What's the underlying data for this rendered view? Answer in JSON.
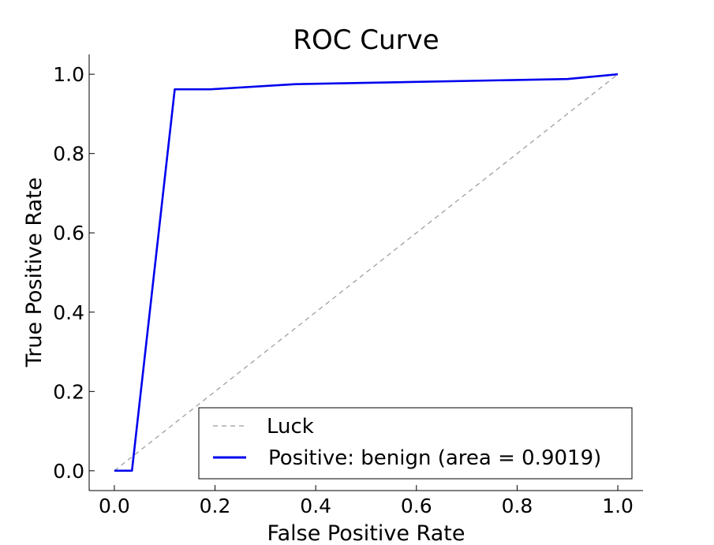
{
  "chart_data": {
    "type": "line",
    "title": "ROC Curve",
    "xlabel": "False Positive Rate",
    "ylabel": "True Positive Rate",
    "xlim": [
      -0.05,
      1.05
    ],
    "ylim": [
      -0.05,
      1.05
    ],
    "x_ticks": [
      0.0,
      0.2,
      0.4,
      0.6,
      0.8,
      1.0
    ],
    "x_tick_labels": [
      "0.0",
      "0.2",
      "0.4",
      "0.6",
      "0.8",
      "1.0"
    ],
    "y_ticks": [
      0.0,
      0.2,
      0.4,
      0.6,
      0.8,
      1.0
    ],
    "y_tick_labels": [
      "0.0",
      "0.2",
      "0.4",
      "0.6",
      "0.8",
      "1.0"
    ],
    "grid": false,
    "legend_position": "lower-right",
    "series": [
      {
        "name": "Luck",
        "style": "dashed",
        "color": "#999999",
        "x": [
          0.0,
          1.0
        ],
        "y": [
          0.0,
          1.0
        ]
      },
      {
        "name": "Positive: benign (area = 0.9019)",
        "style": "solid",
        "color": "#0000ee",
        "x": [
          0.0,
          0.035,
          0.12,
          0.19,
          0.36,
          0.9,
          1.0
        ],
        "y": [
          0.0,
          0.0,
          0.962,
          0.962,
          0.975,
          0.988,
          1.0
        ]
      }
    ]
  }
}
